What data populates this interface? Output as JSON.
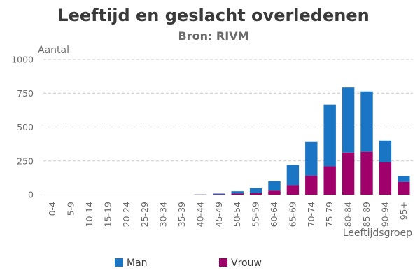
{
  "chart_data": {
    "type": "bar",
    "stacked": true,
    "title": "Leeftijd en geslacht overledenen",
    "subtitle": "Bron: RIVM",
    "xlabel": "Leeftijdsgroep",
    "ylabel": "Aantal",
    "ylim": [
      0,
      1000
    ],
    "yticks": [
      0,
      250,
      500,
      750,
      1000
    ],
    "grid": true,
    "legend_position": "bottom",
    "categories": [
      "0-4",
      "5-9",
      "10-14",
      "15-19",
      "20-24",
      "25-29",
      "30-34",
      "35-39",
      "40-44",
      "45-49",
      "50-54",
      "55-59",
      "60-64",
      "65-69",
      "70-74",
      "75-79",
      "80-84",
      "85-89",
      "90-94",
      "95+"
    ],
    "series": [
      {
        "name": "Vrouw",
        "color": "#a0006a",
        "values": [
          0,
          0,
          0,
          0,
          0,
          0,
          0,
          0,
          1,
          3,
          8,
          12,
          30,
          70,
          140,
          210,
          312,
          318,
          240,
          95
        ]
      },
      {
        "name": "Man",
        "color": "#1a76c4",
        "values": [
          0,
          0,
          0,
          0,
          0,
          0,
          0,
          0,
          1,
          5,
          17,
          36,
          70,
          150,
          250,
          455,
          480,
          445,
          160,
          42
        ]
      }
    ],
    "legend": [
      {
        "label": "Man",
        "color": "#1a76c4"
      },
      {
        "label": "Vrouw",
        "color": "#a0006a"
      }
    ]
  }
}
